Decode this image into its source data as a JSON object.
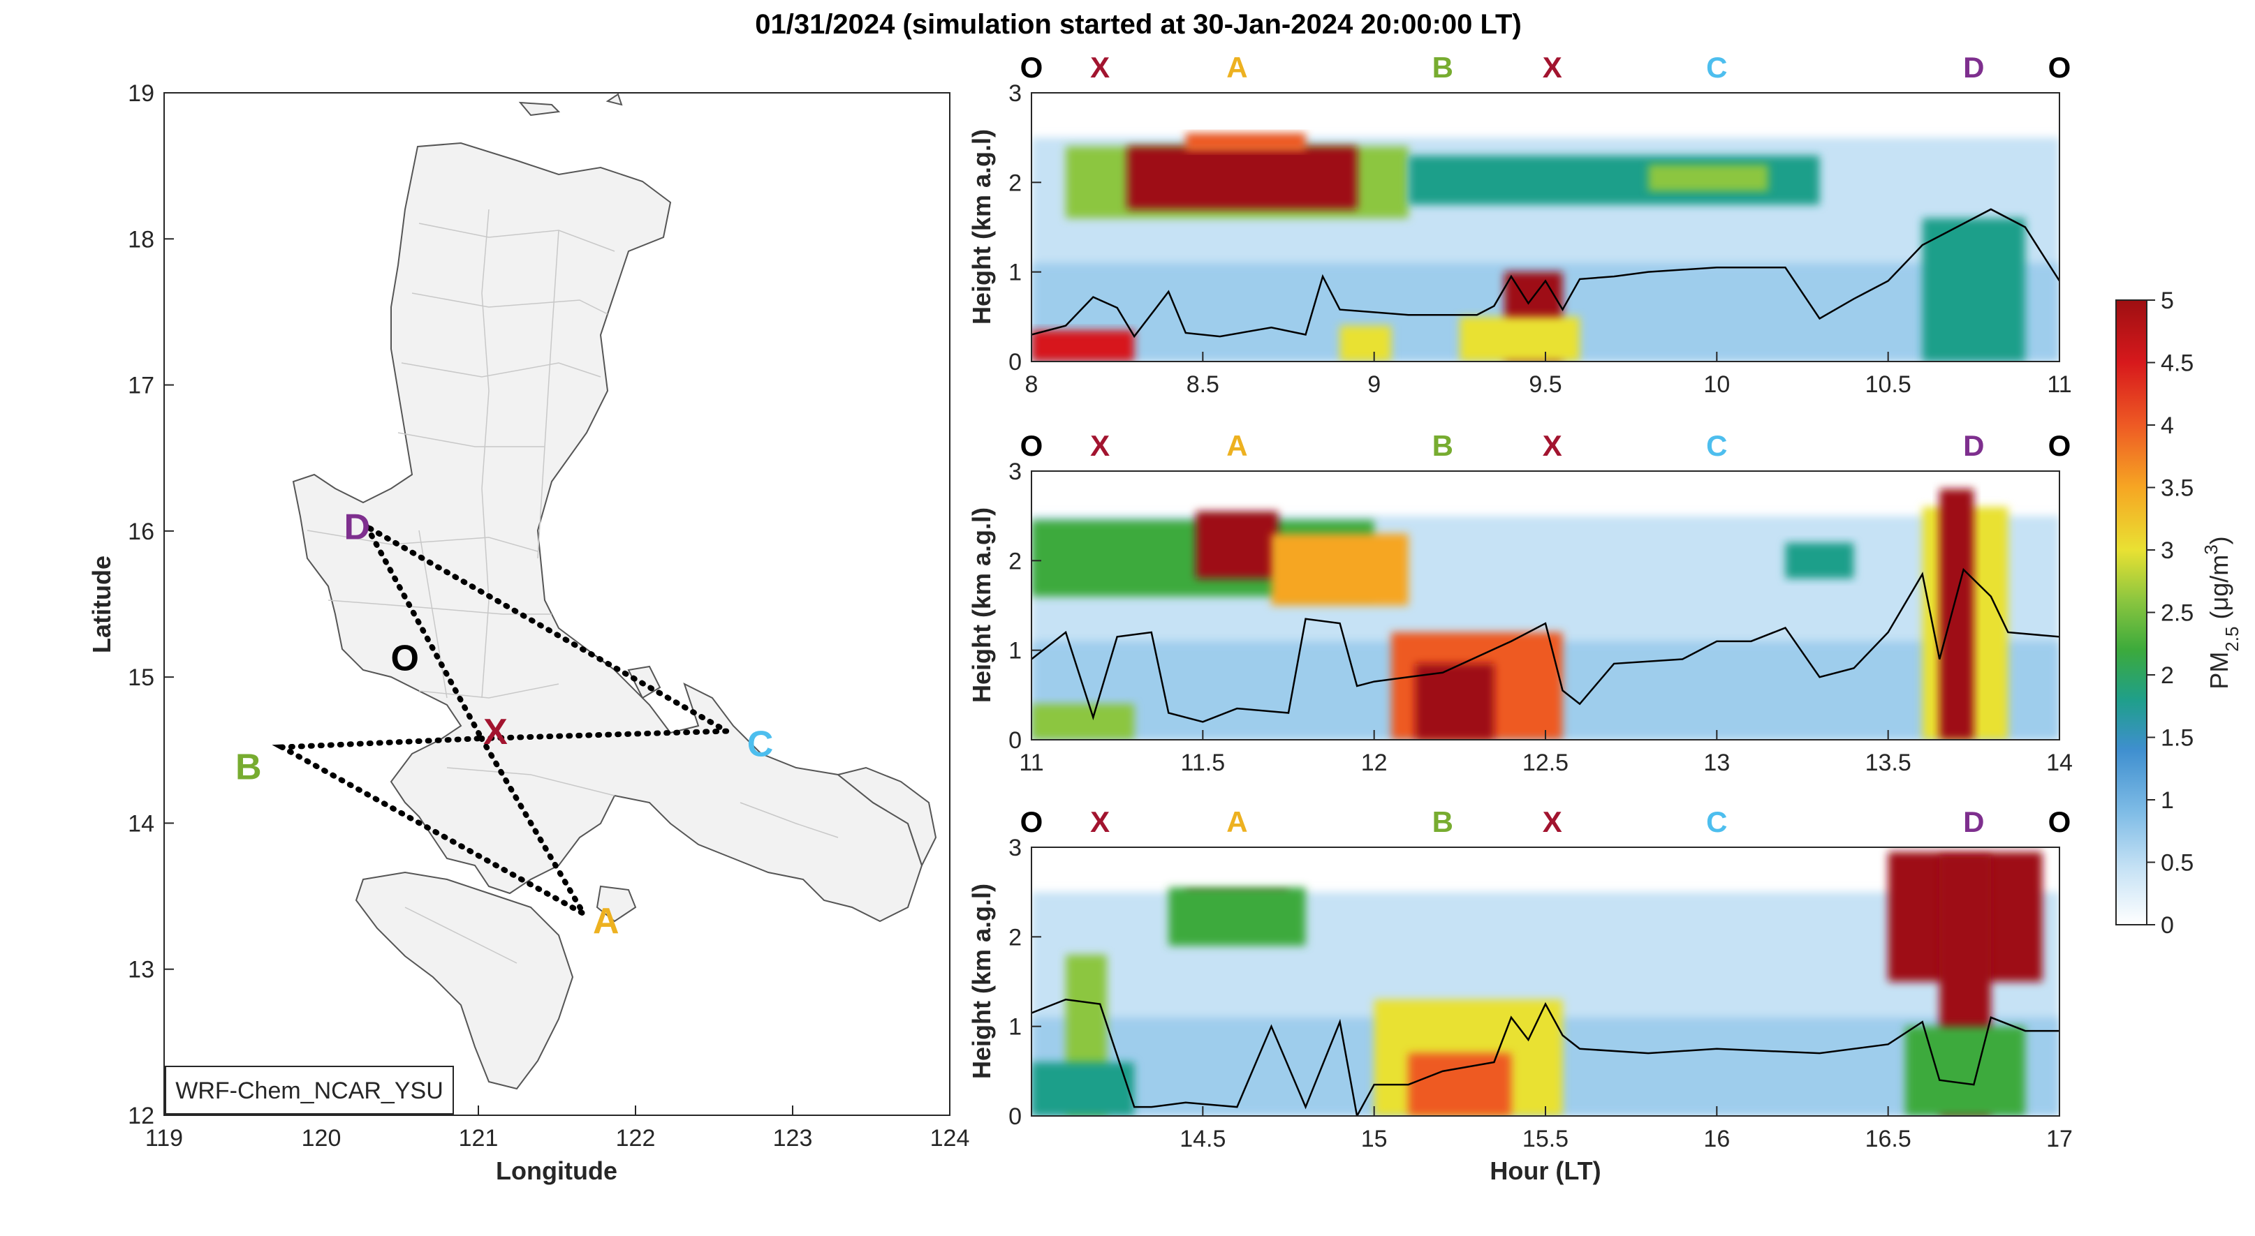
{
  "title": "01/31/2024 (simulation started at 30-Jan-2024 20:00:00 LT)",
  "colors": {
    "X": "#a2142f",
    "A": "#edb120",
    "B": "#77ac30",
    "C": "#4dbeee",
    "D": "#7e2f8e",
    "O": "#000000",
    "colormap": [
      "#ffffff",
      "#c6e2f5",
      "#7fbce6",
      "#3f8fcf",
      "#1f9f8a",
      "#3caa3c",
      "#8cc63f",
      "#e9e133",
      "#f6a623",
      "#ee5a24",
      "#d7191c",
      "#9e0f12"
    ]
  },
  "chart_data": [
    {
      "type": "map",
      "xlabel": "Longitude",
      "ylabel": "Latitude",
      "xlim": [
        119,
        124
      ],
      "ylim": [
        12,
        19
      ],
      "xticks": [
        "119",
        "120",
        "121",
        "122",
        "123",
        "124"
      ],
      "yticks": [
        "12",
        "13",
        "14",
        "15",
        "16",
        "17",
        "18",
        "19"
      ],
      "legend_box": "WRF-Chem_NCAR_YSU",
      "sites": [
        {
          "name": "D",
          "lon": 120.29,
          "lat": 16.03,
          "color_key": "D"
        },
        {
          "name": "O",
          "lon": 120.55,
          "lat": 15.17,
          "color_key": "O"
        },
        {
          "name": "X",
          "lon": 121.02,
          "lat": 14.58,
          "color_key": "X"
        },
        {
          "name": "C",
          "lon": 122.58,
          "lat": 14.63,
          "color_key": "C"
        },
        {
          "name": "B",
          "lon": 119.75,
          "lat": 14.52,
          "color_key": "B"
        },
        {
          "name": "A",
          "lon": 121.67,
          "lat": 13.38,
          "color_key": "A"
        }
      ],
      "flight_track": [
        "D",
        "X",
        "B",
        "A",
        "X",
        "C",
        "D"
      ]
    },
    {
      "type": "heatmap",
      "panel": "top",
      "ylabel": "Height (km a.g.l)",
      "xlim": [
        8,
        11
      ],
      "ylim": [
        0,
        3
      ],
      "xticks": [
        "8",
        "8.5",
        "9",
        "9.5",
        "10",
        "10.5",
        "11"
      ],
      "yticks": [
        "0",
        "1",
        "2",
        "3"
      ],
      "route_labels": [
        {
          "label": "O",
          "x": 8.0
        },
        {
          "label": "X",
          "x": 8.2
        },
        {
          "label": "A",
          "x": 8.6
        },
        {
          "label": "B",
          "x": 9.2
        },
        {
          "label": "X",
          "x": 9.52
        },
        {
          "label": "C",
          "x": 10.0
        },
        {
          "label": "D",
          "x": 10.75
        },
        {
          "label": "O",
          "x": 11.0
        }
      ],
      "pbl_height": [
        [
          8.0,
          0.3
        ],
        [
          8.1,
          0.4
        ],
        [
          8.18,
          0.72
        ],
        [
          8.25,
          0.6
        ],
        [
          8.3,
          0.28
        ],
        [
          8.4,
          0.78
        ],
        [
          8.45,
          0.32
        ],
        [
          8.55,
          0.28
        ],
        [
          8.7,
          0.38
        ],
        [
          8.8,
          0.3
        ],
        [
          8.85,
          0.95
        ],
        [
          8.9,
          0.58
        ],
        [
          9.0,
          0.55
        ],
        [
          9.1,
          0.52
        ],
        [
          9.3,
          0.52
        ],
        [
          9.35,
          0.62
        ],
        [
          9.4,
          0.95
        ],
        [
          9.45,
          0.65
        ],
        [
          9.5,
          0.9
        ],
        [
          9.55,
          0.58
        ],
        [
          9.6,
          0.92
        ],
        [
          9.7,
          0.95
        ],
        [
          9.8,
          1.0
        ],
        [
          10.0,
          1.05
        ],
        [
          10.2,
          1.05
        ],
        [
          10.3,
          0.48
        ],
        [
          10.4,
          0.7
        ],
        [
          10.5,
          0.9
        ],
        [
          10.6,
          1.3
        ],
        [
          10.7,
          1.5
        ],
        [
          10.8,
          1.7
        ],
        [
          10.9,
          1.5
        ],
        [
          11.0,
          0.9
        ]
      ],
      "aerosol_layers": [
        {
          "x0": 8.1,
          "x1": 9.1,
          "y0": 1.6,
          "y1": 2.4,
          "value": 2.6
        },
        {
          "x0": 8.28,
          "x1": 8.95,
          "y0": 1.7,
          "y1": 2.4,
          "value": 5.0
        },
        {
          "x0": 8.45,
          "x1": 8.8,
          "y0": 2.35,
          "y1": 2.55,
          "value": 4.2
        },
        {
          "x0": 9.1,
          "x1": 10.3,
          "y0": 1.75,
          "y1": 2.3,
          "value": 2.0
        },
        {
          "x0": 9.8,
          "x1": 10.15,
          "y0": 1.9,
          "y1": 2.2,
          "value": 2.6
        },
        {
          "x0": 9.38,
          "x1": 9.55,
          "y0": 0.0,
          "y1": 1.0,
          "value": 5.0
        },
        {
          "x0": 9.25,
          "x1": 9.6,
          "y0": 0.0,
          "y1": 0.5,
          "value": 3.2
        },
        {
          "x0": 8.0,
          "x1": 8.3,
          "y0": 0.0,
          "y1": 0.35,
          "value": 4.4
        },
        {
          "x0": 8.9,
          "x1": 9.05,
          "y0": 0.0,
          "y1": 0.4,
          "value": 3.0
        },
        {
          "x0": 10.6,
          "x1": 10.9,
          "y0": 0.0,
          "y1": 1.6,
          "value": 1.6
        }
      ]
    },
    {
      "type": "heatmap",
      "panel": "middle",
      "ylabel": "Height (km a.g.l)",
      "xlim": [
        11,
        14
      ],
      "ylim": [
        0,
        3
      ],
      "xticks": [
        "11",
        "11.5",
        "12",
        "12.5",
        "13",
        "13.5",
        "14"
      ],
      "yticks": [
        "0",
        "1",
        "2",
        "3"
      ],
      "route_labels": [
        {
          "label": "O",
          "x": 11.0
        },
        {
          "label": "X",
          "x": 11.2
        },
        {
          "label": "A",
          "x": 11.6
        },
        {
          "label": "B",
          "x": 12.2
        },
        {
          "label": "X",
          "x": 12.52
        },
        {
          "label": "C",
          "x": 13.0
        },
        {
          "label": "D",
          "x": 13.75
        },
        {
          "label": "O",
          "x": 14.0
        }
      ],
      "pbl_height": [
        [
          11.0,
          0.9
        ],
        [
          11.1,
          1.2
        ],
        [
          11.18,
          0.25
        ],
        [
          11.25,
          1.15
        ],
        [
          11.35,
          1.2
        ],
        [
          11.4,
          0.3
        ],
        [
          11.5,
          0.2
        ],
        [
          11.6,
          0.35
        ],
        [
          11.75,
          0.3
        ],
        [
          11.8,
          1.35
        ],
        [
          11.9,
          1.3
        ],
        [
          11.95,
          0.6
        ],
        [
          12.0,
          0.65
        ],
        [
          12.1,
          0.7
        ],
        [
          12.2,
          0.75
        ],
        [
          12.4,
          1.1
        ],
        [
          12.5,
          1.3
        ],
        [
          12.55,
          0.55
        ],
        [
          12.6,
          0.4
        ],
        [
          12.7,
          0.85
        ],
        [
          12.9,
          0.9
        ],
        [
          13.0,
          1.1
        ],
        [
          13.1,
          1.1
        ],
        [
          13.2,
          1.25
        ],
        [
          13.3,
          0.7
        ],
        [
          13.4,
          0.8
        ],
        [
          13.5,
          1.2
        ],
        [
          13.6,
          1.85
        ],
        [
          13.65,
          0.9
        ],
        [
          13.72,
          1.9
        ],
        [
          13.8,
          1.6
        ],
        [
          13.85,
          1.2
        ],
        [
          14.0,
          1.15
        ]
      ],
      "aerosol_layers": [
        {
          "x0": 11.0,
          "x1": 12.0,
          "y0": 1.6,
          "y1": 2.45,
          "value": 2.2
        },
        {
          "x0": 11.48,
          "x1": 11.72,
          "y0": 1.8,
          "y1": 2.55,
          "value": 5.0
        },
        {
          "x0": 11.7,
          "x1": 12.1,
          "y0": 1.5,
          "y1": 2.3,
          "value": 3.6
        },
        {
          "x0": 12.05,
          "x1": 12.55,
          "y0": 0.0,
          "y1": 1.2,
          "value": 4.0
        },
        {
          "x0": 12.12,
          "x1": 12.35,
          "y0": 0.0,
          "y1": 0.85,
          "value": 5.0
        },
        {
          "x0": 13.6,
          "x1": 13.85,
          "y0": 0.0,
          "y1": 2.6,
          "value": 3.2
        },
        {
          "x0": 13.65,
          "x1": 13.75,
          "y0": 0.0,
          "y1": 2.8,
          "value": 5.0
        },
        {
          "x0": 11.0,
          "x1": 11.3,
          "y0": 0.0,
          "y1": 0.4,
          "value": 2.8
        },
        {
          "x0": 13.2,
          "x1": 13.4,
          "y0": 1.8,
          "y1": 2.2,
          "value": 2.0
        }
      ]
    },
    {
      "type": "heatmap",
      "panel": "bottom",
      "ylabel": "Height (km a.g.l)",
      "xlabel": "Hour (LT)",
      "xlim": [
        14,
        17
      ],
      "ylim": [
        0,
        3
      ],
      "xticks": [
        "14.5",
        "15",
        "15.5",
        "16",
        "16.5",
        "17"
      ],
      "yticks": [
        "0",
        "1",
        "2",
        "3"
      ],
      "route_labels": [
        {
          "label": "O",
          "x": 14.0
        },
        {
          "label": "X",
          "x": 14.2
        },
        {
          "label": "A",
          "x": 14.6
        },
        {
          "label": "B",
          "x": 15.2
        },
        {
          "label": "X",
          "x": 15.52
        },
        {
          "label": "C",
          "x": 16.0
        },
        {
          "label": "D",
          "x": 16.75
        },
        {
          "label": "O",
          "x": 17.0
        }
      ],
      "colorbar": {
        "label": "PM2.5 (μg/m3)",
        "min": 0,
        "max": 5,
        "ticks": [
          "0",
          "0.5",
          "1",
          "1.5",
          "2",
          "2.5",
          "3",
          "3.5",
          "4",
          "4.5",
          "5"
        ]
      },
      "pbl_height": [
        [
          14.0,
          1.15
        ],
        [
          14.1,
          1.3
        ],
        [
          14.2,
          1.25
        ],
        [
          14.3,
          0.1
        ],
        [
          14.35,
          0.1
        ],
        [
          14.45,
          0.15
        ],
        [
          14.6,
          0.1
        ],
        [
          14.7,
          1.0
        ],
        [
          14.8,
          0.1
        ],
        [
          14.9,
          1.05
        ],
        [
          14.95,
          0.0
        ],
        [
          15.0,
          0.35
        ],
        [
          15.1,
          0.35
        ],
        [
          15.2,
          0.5
        ],
        [
          15.35,
          0.6
        ],
        [
          15.4,
          1.1
        ],
        [
          15.45,
          0.85
        ],
        [
          15.5,
          1.25
        ],
        [
          15.55,
          0.9
        ],
        [
          15.6,
          0.75
        ],
        [
          15.8,
          0.7
        ],
        [
          16.0,
          0.75
        ],
        [
          16.3,
          0.7
        ],
        [
          16.5,
          0.8
        ],
        [
          16.6,
          1.05
        ],
        [
          16.65,
          0.4
        ],
        [
          16.75,
          0.35
        ],
        [
          16.8,
          1.1
        ],
        [
          16.9,
          0.95
        ],
        [
          17.0,
          0.95
        ]
      ],
      "aerosol_layers": [
        {
          "x0": 14.45,
          "x1": 14.75,
          "y0": 2.05,
          "y1": 2.5,
          "value": 4.8
        },
        {
          "x0": 14.4,
          "x1": 14.8,
          "y0": 1.9,
          "y1": 2.55,
          "value": 2.4
        },
        {
          "x0": 15.0,
          "x1": 15.55,
          "y0": 0.0,
          "y1": 1.3,
          "value": 3.4
        },
        {
          "x0": 15.1,
          "x1": 15.4,
          "y0": 0.0,
          "y1": 0.7,
          "value": 4.0
        },
        {
          "x0": 16.5,
          "x1": 16.95,
          "y0": 1.5,
          "y1": 2.95,
          "value": 5.0
        },
        {
          "x0": 16.65,
          "x1": 16.8,
          "y0": 0.0,
          "y1": 2.9,
          "value": 5.0
        },
        {
          "x0": 14.1,
          "x1": 14.22,
          "y0": 0.0,
          "y1": 1.8,
          "value": 2.8
        },
        {
          "x0": 14.0,
          "x1": 14.3,
          "y0": 0.0,
          "y1": 0.6,
          "value": 2.0
        },
        {
          "x0": 16.55,
          "x1": 16.9,
          "y0": 0.0,
          "y1": 1.0,
          "value": 2.4
        }
      ]
    }
  ]
}
